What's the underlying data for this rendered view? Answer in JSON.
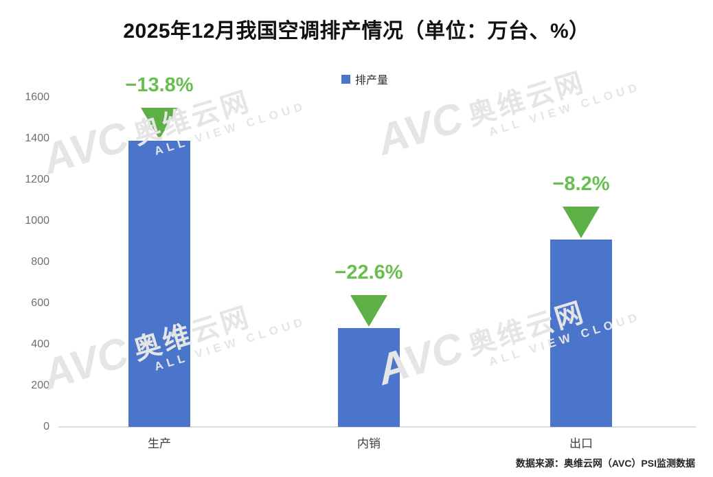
{
  "title": "2025年12月我国空调排产情况（单位：万台、%）",
  "chart_data": {
    "type": "bar",
    "title": "2025年12月我国空调排产情况（单位：万台、%）",
    "categories": [
      "生产",
      "内销",
      "出口"
    ],
    "series": [
      {
        "name": "排产量",
        "values": [
          1390,
          480,
          910
        ]
      }
    ],
    "change_labels": [
      "−13.8%",
      "−22.6%",
      "−8.2%"
    ],
    "xlabel": "",
    "ylabel": "",
    "ylim": [
      0,
      1600
    ],
    "yticks": [
      0,
      200,
      400,
      600,
      800,
      1000,
      1200,
      1400,
      1600
    ],
    "grid": false,
    "legend_position": "top-center"
  },
  "legend": {
    "label": "排产量"
  },
  "source_note": "数据来源：奥维云网（AVC）PSI监测数据",
  "watermark": {
    "brand": "AVC",
    "brand_cn": "奥维云网",
    "tagline": "ALL VIEW CLOUD"
  },
  "colors": {
    "background": "#ffffff",
    "bar": "#4a75cb",
    "change_text": "#68be4f",
    "triangle": "#5cb046",
    "title_text": "#111111",
    "axis_tick_text": "#6e6e6e",
    "category_text": "#3d3d3d",
    "legend_text": "#2f2f2f",
    "axis_line": "#dcdcdc",
    "source_text": "#262626",
    "watermark": "#e5e5e5"
  }
}
